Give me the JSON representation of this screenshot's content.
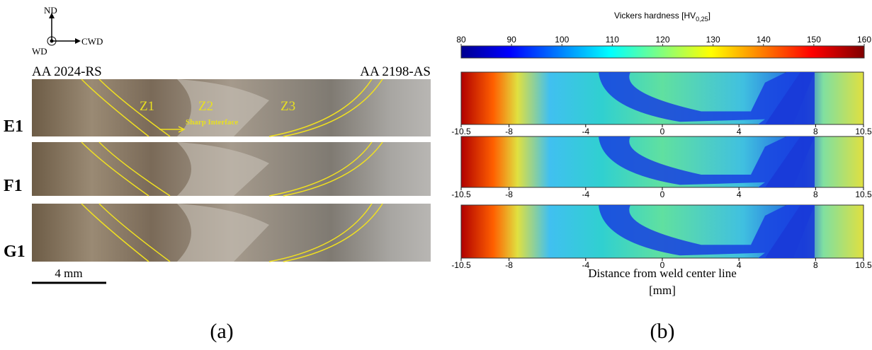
{
  "panel_a": {
    "axes": {
      "up": "ND",
      "right": "CWD",
      "out": "WD"
    },
    "left_material": "AA 2024-RS",
    "right_material": "AA 2198-AS",
    "rows": [
      "E1",
      "F1",
      "G1"
    ],
    "zones": [
      "Z1",
      "Z2",
      "Z3"
    ],
    "annotation": "Sharp Interface",
    "scale_bar": "4 mm",
    "caption": "(a)"
  },
  "panel_b": {
    "colorbar": {
      "title": "Vickers hardness [HV",
      "title_subscript": "0,25",
      "title_end": "]",
      "lim": [
        80,
        160
      ],
      "ticks": [
        80,
        90,
        100,
        110,
        120,
        130,
        140,
        150,
        160
      ]
    },
    "xlim": [
      -10.5,
      10.5
    ],
    "xticks": [
      -10.5,
      -8,
      -4,
      0,
      4,
      8,
      10.5
    ],
    "xlabel": "Distance from weld center line",
    "xunit": "[mm]",
    "caption": "(b)"
  }
}
